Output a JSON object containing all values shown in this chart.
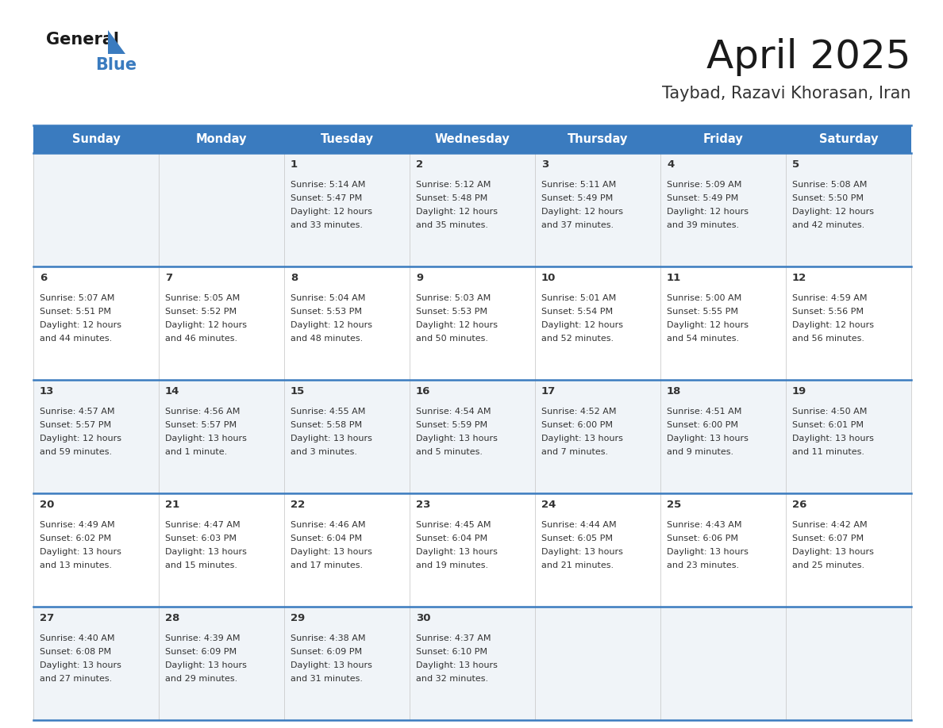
{
  "title": "April 2025",
  "subtitle": "Taybad, Razavi Khorasan, Iran",
  "header_bg": "#3a7bbf",
  "header_text": "#ffffff",
  "row_bg_light": "#f0f4f8",
  "row_bg_white": "#ffffff",
  "grid_line_color": "#3a7bbf",
  "day_headers": [
    "Sunday",
    "Monday",
    "Tuesday",
    "Wednesday",
    "Thursday",
    "Friday",
    "Saturday"
  ],
  "cells": [
    [
      null,
      null,
      {
        "day": 1,
        "sunrise": "5:14 AM",
        "sunset": "5:47 PM",
        "daylight_line1": "12 hours",
        "daylight_line2": "and 33 minutes."
      },
      {
        "day": 2,
        "sunrise": "5:12 AM",
        "sunset": "5:48 PM",
        "daylight_line1": "12 hours",
        "daylight_line2": "and 35 minutes."
      },
      {
        "day": 3,
        "sunrise": "5:11 AM",
        "sunset": "5:49 PM",
        "daylight_line1": "12 hours",
        "daylight_line2": "and 37 minutes."
      },
      {
        "day": 4,
        "sunrise": "5:09 AM",
        "sunset": "5:49 PM",
        "daylight_line1": "12 hours",
        "daylight_line2": "and 39 minutes."
      },
      {
        "day": 5,
        "sunrise": "5:08 AM",
        "sunset": "5:50 PM",
        "daylight_line1": "12 hours",
        "daylight_line2": "and 42 minutes."
      }
    ],
    [
      {
        "day": 6,
        "sunrise": "5:07 AM",
        "sunset": "5:51 PM",
        "daylight_line1": "12 hours",
        "daylight_line2": "and 44 minutes."
      },
      {
        "day": 7,
        "sunrise": "5:05 AM",
        "sunset": "5:52 PM",
        "daylight_line1": "12 hours",
        "daylight_line2": "and 46 minutes."
      },
      {
        "day": 8,
        "sunrise": "5:04 AM",
        "sunset": "5:53 PM",
        "daylight_line1": "12 hours",
        "daylight_line2": "and 48 minutes."
      },
      {
        "day": 9,
        "sunrise": "5:03 AM",
        "sunset": "5:53 PM",
        "daylight_line1": "12 hours",
        "daylight_line2": "and 50 minutes."
      },
      {
        "day": 10,
        "sunrise": "5:01 AM",
        "sunset": "5:54 PM",
        "daylight_line1": "12 hours",
        "daylight_line2": "and 52 minutes."
      },
      {
        "day": 11,
        "sunrise": "5:00 AM",
        "sunset": "5:55 PM",
        "daylight_line1": "12 hours",
        "daylight_line2": "and 54 minutes."
      },
      {
        "day": 12,
        "sunrise": "4:59 AM",
        "sunset": "5:56 PM",
        "daylight_line1": "12 hours",
        "daylight_line2": "and 56 minutes."
      }
    ],
    [
      {
        "day": 13,
        "sunrise": "4:57 AM",
        "sunset": "5:57 PM",
        "daylight_line1": "12 hours",
        "daylight_line2": "and 59 minutes."
      },
      {
        "day": 14,
        "sunrise": "4:56 AM",
        "sunset": "5:57 PM",
        "daylight_line1": "13 hours",
        "daylight_line2": "and 1 minute."
      },
      {
        "day": 15,
        "sunrise": "4:55 AM",
        "sunset": "5:58 PM",
        "daylight_line1": "13 hours",
        "daylight_line2": "and 3 minutes."
      },
      {
        "day": 16,
        "sunrise": "4:54 AM",
        "sunset": "5:59 PM",
        "daylight_line1": "13 hours",
        "daylight_line2": "and 5 minutes."
      },
      {
        "day": 17,
        "sunrise": "4:52 AM",
        "sunset": "6:00 PM",
        "daylight_line1": "13 hours",
        "daylight_line2": "and 7 minutes."
      },
      {
        "day": 18,
        "sunrise": "4:51 AM",
        "sunset": "6:00 PM",
        "daylight_line1": "13 hours",
        "daylight_line2": "and 9 minutes."
      },
      {
        "day": 19,
        "sunrise": "4:50 AM",
        "sunset": "6:01 PM",
        "daylight_line1": "13 hours",
        "daylight_line2": "and 11 minutes."
      }
    ],
    [
      {
        "day": 20,
        "sunrise": "4:49 AM",
        "sunset": "6:02 PM",
        "daylight_line1": "13 hours",
        "daylight_line2": "and 13 minutes."
      },
      {
        "day": 21,
        "sunrise": "4:47 AM",
        "sunset": "6:03 PM",
        "daylight_line1": "13 hours",
        "daylight_line2": "and 15 minutes."
      },
      {
        "day": 22,
        "sunrise": "4:46 AM",
        "sunset": "6:04 PM",
        "daylight_line1": "13 hours",
        "daylight_line2": "and 17 minutes."
      },
      {
        "day": 23,
        "sunrise": "4:45 AM",
        "sunset": "6:04 PM",
        "daylight_line1": "13 hours",
        "daylight_line2": "and 19 minutes."
      },
      {
        "day": 24,
        "sunrise": "4:44 AM",
        "sunset": "6:05 PM",
        "daylight_line1": "13 hours",
        "daylight_line2": "and 21 minutes."
      },
      {
        "day": 25,
        "sunrise": "4:43 AM",
        "sunset": "6:06 PM",
        "daylight_line1": "13 hours",
        "daylight_line2": "and 23 minutes."
      },
      {
        "day": 26,
        "sunrise": "4:42 AM",
        "sunset": "6:07 PM",
        "daylight_line1": "13 hours",
        "daylight_line2": "and 25 minutes."
      }
    ],
    [
      {
        "day": 27,
        "sunrise": "4:40 AM",
        "sunset": "6:08 PM",
        "daylight_line1": "13 hours",
        "daylight_line2": "and 27 minutes."
      },
      {
        "day": 28,
        "sunrise": "4:39 AM",
        "sunset": "6:09 PM",
        "daylight_line1": "13 hours",
        "daylight_line2": "and 29 minutes."
      },
      {
        "day": 29,
        "sunrise": "4:38 AM",
        "sunset": "6:09 PM",
        "daylight_line1": "13 hours",
        "daylight_line2": "and 31 minutes."
      },
      {
        "day": 30,
        "sunrise": "4:37 AM",
        "sunset": "6:10 PM",
        "daylight_line1": "13 hours",
        "daylight_line2": "and 32 minutes."
      },
      null,
      null,
      null
    ]
  ]
}
